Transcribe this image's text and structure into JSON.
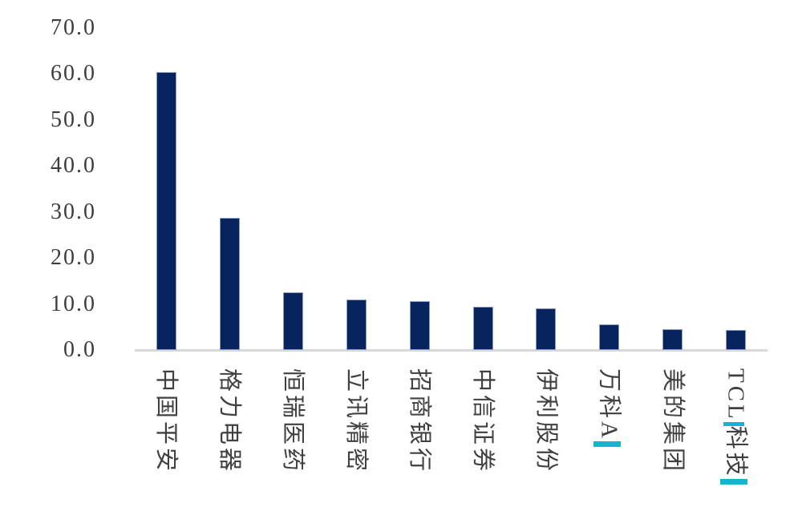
{
  "chart_data": {
    "type": "bar",
    "categories": [
      "中国平安",
      "格力电器",
      "恒瑞医药",
      "立讯精密",
      "招商银行",
      "中信证券",
      "伊利股份",
      "万科A",
      "美的集团",
      "TCL科技"
    ],
    "values": [
      60.4,
      28.8,
      12.6,
      11.0,
      10.7,
      9.4,
      9.1,
      5.6,
      4.5,
      4.3
    ],
    "ytick_labels": [
      "70.0",
      "60.0",
      "50.0",
      "40.0",
      "30.0",
      "20.0",
      "10.0",
      "0.0"
    ],
    "ylim": [
      0,
      70
    ],
    "xlabel": "",
    "ylabel": "",
    "grid": false,
    "legend": "none",
    "category_label_rotation_deg": 90,
    "tcl_split": [
      "TCL",
      "科技"
    ],
    "cyan_markers": [
      {
        "label": "万科A",
        "placement": "after-text"
      },
      {
        "label": "TCL科技",
        "placement": "after-TCL"
      },
      {
        "label": "TCL科技",
        "placement": "after-text"
      }
    ],
    "colors": {
      "bar": "#07245e",
      "bar_border": "#8b9cc7",
      "axis_line": "#d9d9d9",
      "ytick_text": "#3d3d3d",
      "category_text": "#404040",
      "cyan_marker": "#17b2ce",
      "background": "#ffffff"
    }
  }
}
